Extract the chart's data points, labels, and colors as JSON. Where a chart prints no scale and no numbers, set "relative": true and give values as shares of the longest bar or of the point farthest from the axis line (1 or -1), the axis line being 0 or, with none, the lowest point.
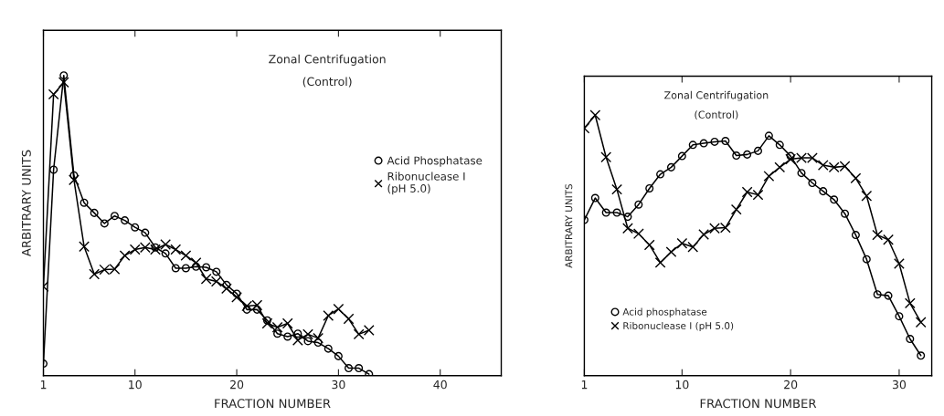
{
  "chart_data": [
    {
      "type": "line",
      "title": "Zonal Centrifugation",
      "subtitle": "(Control)",
      "xlabel": "FRACTION NUMBER",
      "ylabel": "ARBITRARY UNITS",
      "relative": true,
      "xlim": [
        1,
        46
      ],
      "xticks": [
        1,
        10,
        20,
        30,
        40
      ],
      "legend": "right",
      "line_style": "solid",
      "series": [
        {
          "name": "Acid Phosphatase",
          "color": "#000000",
          "marker": "circle",
          "x": [
            1,
            2,
            3,
            4,
            5,
            6,
            7,
            8,
            9,
            10,
            11,
            12,
            13,
            14,
            15,
            16,
            17,
            18,
            19,
            20,
            21,
            22,
            23,
            24,
            25,
            26,
            27,
            28,
            29,
            30,
            31,
            32,
            33
          ],
          "values": [
            0.04,
            0.686,
            1.0,
            0.667,
            0.576,
            0.542,
            0.507,
            0.532,
            0.517,
            0.494,
            0.476,
            0.427,
            0.407,
            0.358,
            0.358,
            0.363,
            0.361,
            0.346,
            0.302,
            0.273,
            0.22,
            0.22,
            0.184,
            0.14,
            0.13,
            0.14,
            0.115,
            0.11,
            0.09,
            0.065,
            0.025,
            0.025,
            0.005
          ]
        },
        {
          "name": "Ribonuclease I\n(pH 5.0)",
          "color": "#000000",
          "marker": "cross",
          "x": [
            1,
            2,
            3,
            4,
            5,
            6,
            7,
            8,
            9,
            10,
            11,
            12,
            13,
            14,
            15,
            16,
            17,
            18,
            19,
            20,
            21,
            22,
            23,
            24,
            25,
            26,
            27,
            28,
            29,
            30,
            31,
            32,
            33
          ],
          "values": [
            0.297,
            0.937,
            0.977,
            0.652,
            0.43,
            0.338,
            0.353,
            0.355,
            0.4,
            0.42,
            0.427,
            0.42,
            0.437,
            0.42,
            0.4,
            0.376,
            0.322,
            0.314,
            0.29,
            0.261,
            0.232,
            0.235,
            0.174,
            0.161,
            0.174,
            0.118,
            0.138,
            0.125,
            0.2,
            0.222,
            0.189,
            0.138,
            0.151
          ]
        }
      ]
    },
    {
      "type": "line",
      "title": "Zonal Centrifugation",
      "subtitle": "(Control)",
      "xlabel": "FRACTION NUMBER",
      "ylabel": "ARBITRARY UNITS",
      "relative": true,
      "xlim": [
        1,
        33
      ],
      "xticks": [
        1,
        10,
        20,
        30
      ],
      "legend": "bottom left",
      "line_style": "solid",
      "series": [
        {
          "name": "Acid phosphatase",
          "color": "#000000",
          "marker": "circle",
          "x": [
            1,
            2,
            3,
            4,
            5,
            6,
            7,
            8,
            9,
            10,
            11,
            12,
            13,
            14,
            15,
            16,
            17,
            18,
            19,
            20,
            21,
            22,
            23,
            24,
            25,
            26,
            27,
            28,
            29,
            30,
            31,
            32
          ],
          "values": [
            0.598,
            0.682,
            0.626,
            0.626,
            0.61,
            0.657,
            0.719,
            0.773,
            0.8,
            0.843,
            0.886,
            0.892,
            0.898,
            0.901,
            0.845,
            0.849,
            0.863,
            0.921,
            0.886,
            0.843,
            0.778,
            0.74,
            0.708,
            0.676,
            0.622,
            0.54,
            0.447,
            0.312,
            0.307,
            0.228,
            0.141,
            0.077
          ]
        },
        {
          "name": "Ribonuclease I (pH 5.0)",
          "color": "#000000",
          "marker": "cross",
          "x": [
            1,
            2,
            3,
            4,
            5,
            6,
            7,
            8,
            9,
            10,
            11,
            12,
            13,
            14,
            15,
            16,
            17,
            18,
            19,
            20,
            21,
            22,
            23,
            24,
            25,
            26,
            27,
            28,
            29,
            30,
            31,
            32
          ],
          "values": [
            0.95,
            1.0,
            0.839,
            0.715,
            0.566,
            0.545,
            0.502,
            0.434,
            0.475,
            0.508,
            0.494,
            0.542,
            0.566,
            0.568,
            0.638,
            0.705,
            0.694,
            0.766,
            0.8,
            0.831,
            0.836,
            0.836,
            0.808,
            0.8,
            0.804,
            0.758,
            0.69,
            0.54,
            0.522,
            0.43,
            0.278,
            0.205
          ]
        }
      ]
    }
  ]
}
